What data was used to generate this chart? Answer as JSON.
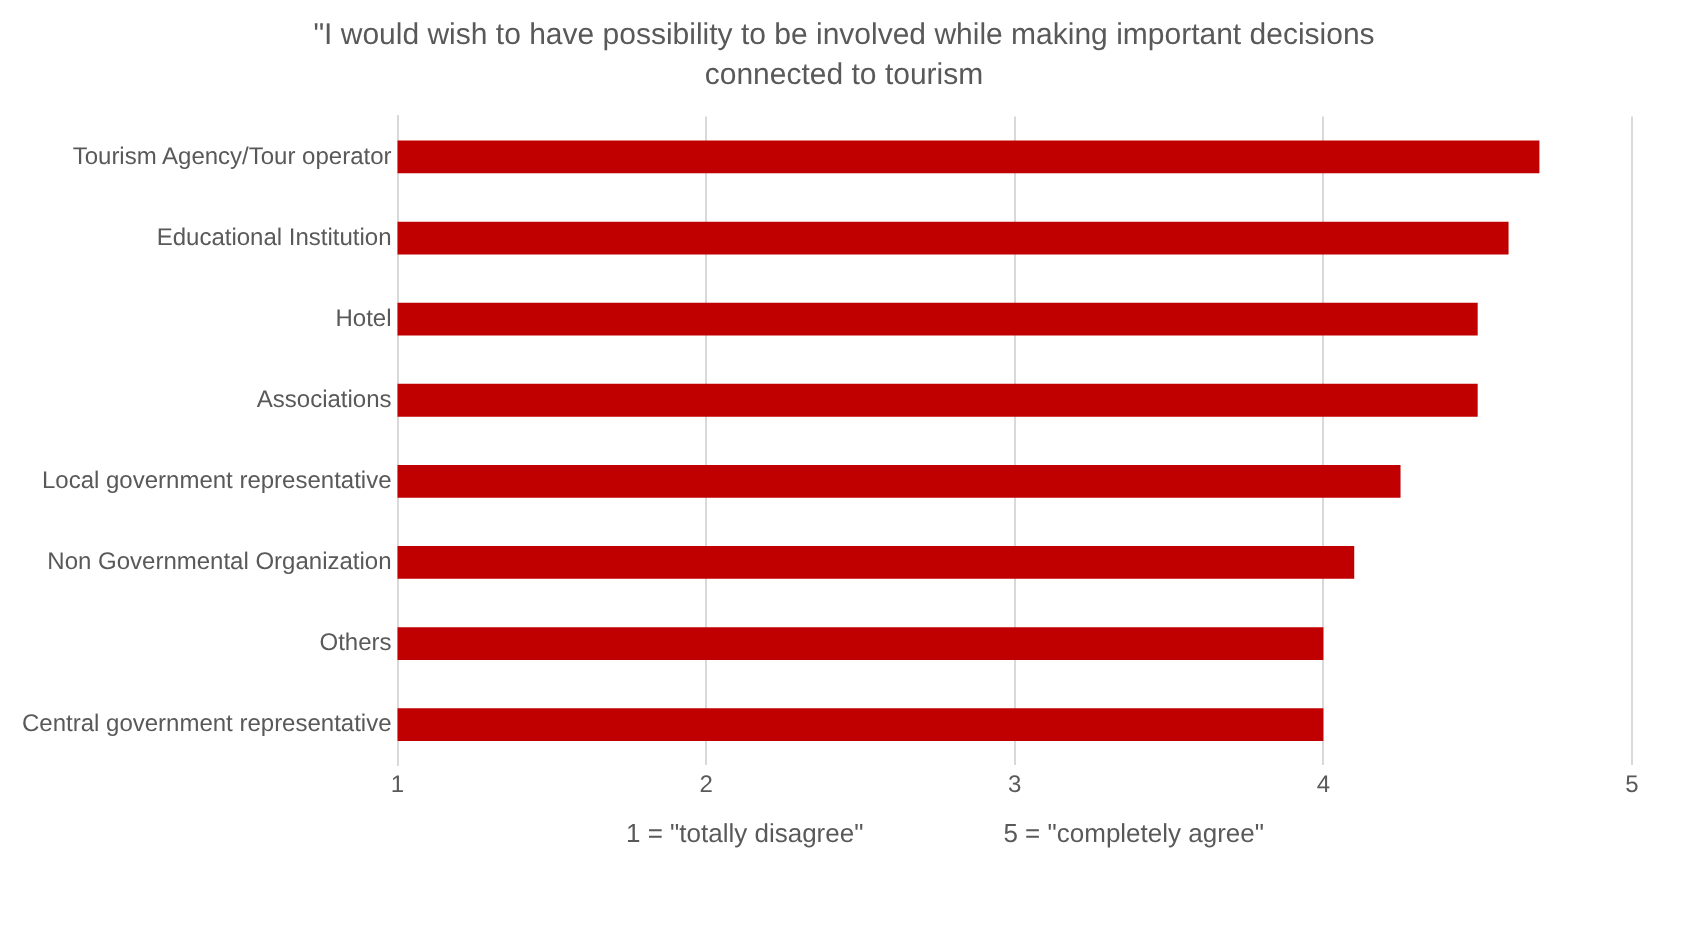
{
  "chart_data": {
    "type": "bar",
    "orientation": "horizontal",
    "title": "\"I would wish to have possibility to be involved while making important decisions connected to tourism",
    "categories": [
      "Tourism Agency/Tour operator",
      "Educational Institution",
      "Hotel",
      "Associations",
      "Local government representative",
      "Non Governmental Organization",
      "Others",
      "Central government representative"
    ],
    "values": [
      4.7,
      4.6,
      4.5,
      4.5,
      4.25,
      4.1,
      4.0,
      4.0
    ],
    "color": "#c00000",
    "xlim": [
      1,
      5
    ],
    "xticks": [
      1,
      2,
      3,
      4,
      5
    ],
    "grid": "x",
    "legend": false,
    "annotations": [
      "1 = \"totally disagree\"",
      "5 = \"completely agree\""
    ]
  }
}
